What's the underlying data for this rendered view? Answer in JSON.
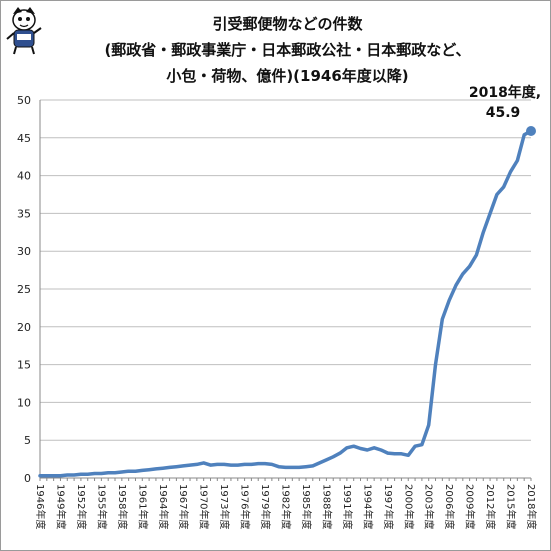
{
  "title": {
    "line1": "引受郵便物などの件数",
    "line2": "(郵政省・郵政事業庁・日本郵政公社・日本郵政など、",
    "line3": "小包・荷物、億件)(1946年度以降)"
  },
  "annotation": {
    "label": "2018年度,",
    "value": "45.9"
  },
  "colors": {
    "line": "#4f81bd",
    "grid": "#bfbfbf",
    "axis": "#888888"
  },
  "icons": {
    "mascot": "mascot-character-icon"
  },
  "chart_data": {
    "type": "line",
    "title": "引受郵便物などの件数(郵政省・郵政事業庁・日本郵政公社・日本郵政など、小包・荷物、億件)(1946年度以降)",
    "xlabel": "",
    "ylabel": "",
    "ylim": [
      0,
      50
    ],
    "yticks": [
      0,
      5,
      10,
      15,
      20,
      25,
      30,
      35,
      40,
      45,
      50
    ],
    "grid": true,
    "legend": "none",
    "x": [
      1946,
      1947,
      1948,
      1949,
      1950,
      1951,
      1952,
      1953,
      1954,
      1955,
      1956,
      1957,
      1958,
      1959,
      1960,
      1961,
      1962,
      1963,
      1964,
      1965,
      1966,
      1967,
      1968,
      1969,
      1970,
      1971,
      1972,
      1973,
      1974,
      1975,
      1976,
      1977,
      1978,
      1979,
      1980,
      1981,
      1982,
      1983,
      1984,
      1985,
      1986,
      1987,
      1988,
      1989,
      1990,
      1991,
      1992,
      1993,
      1994,
      1995,
      1996,
      1997,
      1998,
      1999,
      2000,
      2001,
      2002,
      2003,
      2004,
      2005,
      2006,
      2007,
      2008,
      2009,
      2010,
      2011,
      2012,
      2013,
      2014,
      2015,
      2016,
      2017,
      2018
    ],
    "x_tick_labels": [
      "1946年度",
      "1949年度",
      "1952年度",
      "1955年度",
      "1958年度",
      "1961年度",
      "1964年度",
      "1967年度",
      "1970年度",
      "1973年度",
      "1976年度",
      "1979年度",
      "1982年度",
      "1985年度",
      "1988年度",
      "1991年度",
      "1994年度",
      "1997年度",
      "2000年度",
      "2003年度",
      "2006年度",
      "2009年度",
      "2012年度",
      "2015年度",
      "2018年度"
    ],
    "series": [
      {
        "values": [
          0.3,
          0.3,
          0.3,
          0.3,
          0.4,
          0.4,
          0.5,
          0.5,
          0.6,
          0.6,
          0.7,
          0.7,
          0.8,
          0.9,
          0.9,
          1.0,
          1.1,
          1.2,
          1.3,
          1.4,
          1.5,
          1.6,
          1.7,
          1.8,
          2.0,
          1.7,
          1.8,
          1.8,
          1.7,
          1.7,
          1.8,
          1.8,
          1.9,
          1.9,
          1.8,
          1.5,
          1.4,
          1.4,
          1.4,
          1.5,
          1.6,
          2.0,
          2.4,
          2.8,
          3.3,
          4.0,
          4.2,
          3.9,
          3.7,
          4.0,
          3.7,
          3.3,
          3.2,
          3.2,
          3.0,
          4.2,
          4.4,
          7.0,
          15.0,
          21.0,
          23.5,
          25.5,
          27.0,
          28.0,
          29.5,
          32.5,
          35.0,
          37.5,
          38.5,
          40.5,
          42.0,
          45.4,
          45.9
        ]
      }
    ]
  }
}
